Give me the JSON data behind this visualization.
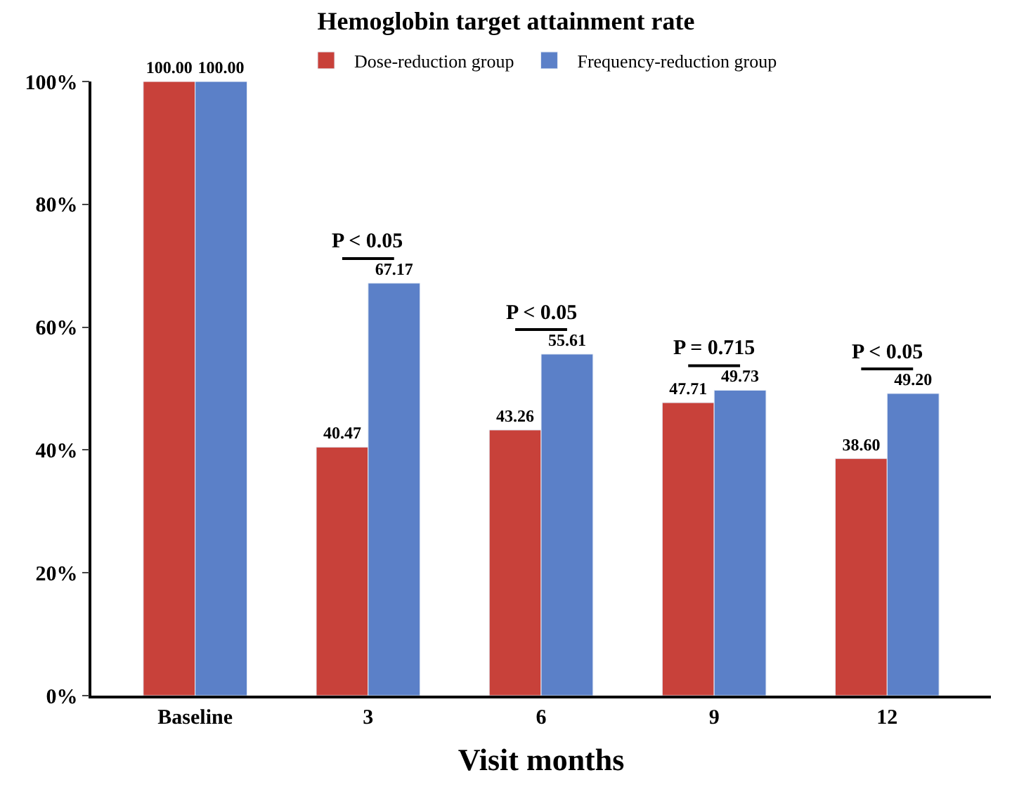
{
  "chart_data": {
    "type": "bar",
    "title": "Hemoglobin target attainment rate",
    "xlabel": "Visit months",
    "categories": [
      "Baseline",
      "3",
      "6",
      "9",
      "12"
    ],
    "series": [
      {
        "name": "Dose-reduction group",
        "color": "#c8413a",
        "values": [
          100.0,
          40.47,
          43.26,
          47.71,
          38.6
        ],
        "value_labels": [
          "100.00",
          "40.47",
          "43.26",
          "47.71",
          "38.60"
        ]
      },
      {
        "name": "Frequency-reduction group",
        "color": "#5b80c8",
        "values": [
          100.0,
          67.17,
          55.61,
          49.73,
          49.2
        ],
        "value_labels": [
          "100.00",
          "67.17",
          "55.61",
          "49.73",
          "49.20"
        ]
      }
    ],
    "ylim": [
      0,
      100
    ],
    "yticks": [
      {
        "value": 0,
        "label": "0%"
      },
      {
        "value": 20,
        "label": "20%"
      },
      {
        "value": 40,
        "label": "40%"
      },
      {
        "value": 60,
        "label": "60%"
      },
      {
        "value": 80,
        "label": "80%"
      },
      {
        "value": 100,
        "label": "100%"
      }
    ],
    "annotations": [
      "P < 0.05",
      "P < 0.05",
      "P = 0.715",
      "P < 0.05"
    ],
    "legend": "top"
  }
}
